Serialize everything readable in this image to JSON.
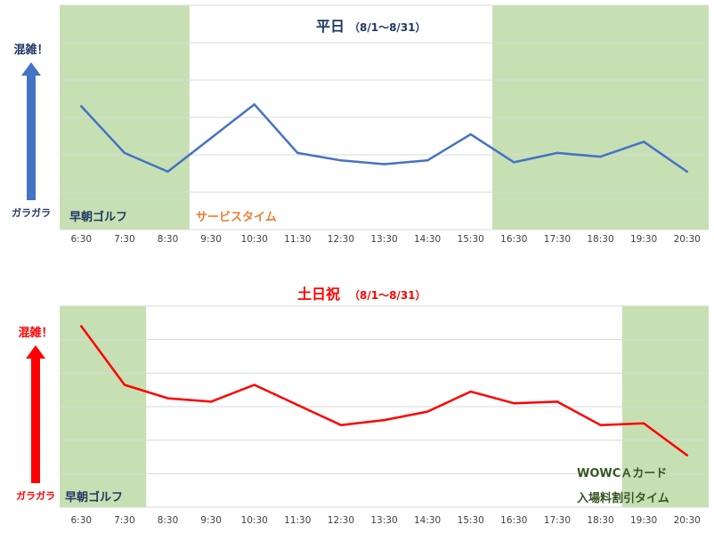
{
  "chart_data": [
    {
      "type": "line",
      "title": "平日",
      "subtitle": "（8/1～8/31）",
      "categories": [
        "6:30",
        "7:30",
        "8:30",
        "9:30",
        "10:30",
        "11:30",
        "12:30",
        "13:30",
        "14:30",
        "15:30",
        "16:30",
        "17:30",
        "18:30",
        "19:30",
        "20:30"
      ],
      "series": [
        {
          "values": [
            66,
            41,
            31,
            49,
            67,
            41,
            37,
            35,
            37,
            51,
            36,
            41,
            39,
            47,
            31
          ]
        }
      ],
      "ylim": [
        0,
        120
      ],
      "grid": true,
      "line_color": "#4472C4",
      "axis_label_top": "混雑！",
      "axis_label_bottom": "ガラガラ",
      "arrow_color": "#4472C4",
      "label_color": "#1F3864",
      "title_color": "#1F3864",
      "bands": [
        {
          "from": "6:30",
          "to": "8:30",
          "label": "早朝ゴルフ",
          "color": "#C6E0B4",
          "label_color": "#1F3864"
        },
        {
          "from": "16:30",
          "to": "20:30",
          "label": "",
          "color": "#C6E0B4"
        }
      ],
      "annotations": [
        {
          "text": "サービスタイム",
          "color": "#ED7D31"
        }
      ]
    },
    {
      "type": "line",
      "title": "土日祝",
      "subtitle": "（8/1～8/31）",
      "categories": [
        "6:30",
        "7:30",
        "8:30",
        "9:30",
        "10:30",
        "11:30",
        "12:30",
        "13:30",
        "14:30",
        "15:30",
        "16:30",
        "17:30",
        "18:30",
        "19:30",
        "20:30"
      ],
      "series": [
        {
          "values": [
            108,
            73,
            65,
            63,
            73,
            61,
            49,
            52,
            57,
            69,
            62,
            63,
            49,
            50,
            31
          ]
        }
      ],
      "ylim": [
        0,
        120
      ],
      "grid": true,
      "line_color": "#FF0000",
      "axis_label_top": "混雑！",
      "axis_label_bottom": "ガラガラ",
      "arrow_color": "#FF0000",
      "label_color": "#FF0000",
      "title_color": "#FF0000",
      "bands": [
        {
          "from": "6:30",
          "to": "7:30",
          "label": "早朝ゴルフ",
          "color": "#C6E0B4",
          "label_color": "#1F3864"
        },
        {
          "from": "19:30",
          "to": "20:30",
          "label": "",
          "color": "#C6E0B4"
        }
      ],
      "annotations": [
        {
          "text": "WOWCＡカード",
          "color": "#375623"
        },
        {
          "text": "入場料割引タイム",
          "color": "#375623"
        }
      ]
    }
  ]
}
